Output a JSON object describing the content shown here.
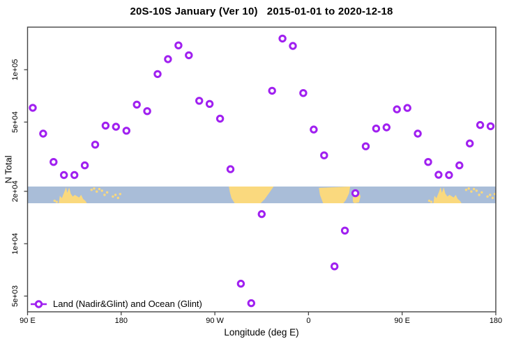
{
  "title": "20S-10S January (Ver 10)   2015-01-01 to 2020-12-18",
  "axes": {
    "x_label": "Longitude (deg E)",
    "y_label": "N Total"
  },
  "legend": {
    "label": "Land (Nadir&Glint) and Ocean (Glint)"
  },
  "colors": {
    "marker": "#A020F0",
    "ocean": "#A9BDD8",
    "land": "#FAD97E",
    "axis": "#444444"
  },
  "chart_data": {
    "type": "scatter",
    "title": "20S-10S January (Ver 10)   2015-01-01 to 2020-12-18",
    "xlabel": "Longitude (deg E)",
    "ylabel": "N Total",
    "x_axis": {
      "note": "wrapped longitude axis spanning 450 deg: 90E -> 180 -> 90W -> 0 -> 90E -> 180",
      "domain_deg": [
        90,
        540
      ],
      "ticks": [
        {
          "deg": 90,
          "label": "90 E"
        },
        {
          "deg": 180,
          "label": "180"
        },
        {
          "deg": 270,
          "label": "90 W"
        },
        {
          "deg": 360,
          "label": "0"
        },
        {
          "deg": 450,
          "label": "90 E"
        },
        {
          "deg": 540,
          "label": "180"
        }
      ]
    },
    "y_axis": {
      "scale": "log",
      "ticks": [
        {
          "value": 100000,
          "label": "1e+05"
        },
        {
          "value": 50000,
          "label": "5e+04"
        },
        {
          "value": 20000,
          "label": "2e+04"
        },
        {
          "value": 10000,
          "label": "1e+04"
        },
        {
          "value": 5000,
          "label": "5e+03"
        }
      ]
    },
    "series": [
      {
        "name": "Land (Nadir&Glint) and Ocean (Glint)",
        "marker": "open-circle",
        "color": "#A020F0",
        "points": [
          [
            95,
            60400
          ],
          [
            105,
            42900
          ],
          [
            115,
            29500
          ],
          [
            125,
            24800
          ],
          [
            135,
            24800
          ],
          [
            145,
            28200
          ],
          [
            155,
            37100
          ],
          [
            165,
            47700
          ],
          [
            175,
            47000
          ],
          [
            185,
            44600
          ],
          [
            195,
            63000
          ],
          [
            205,
            57800
          ],
          [
            215,
            94400
          ],
          [
            225,
            115000
          ],
          [
            235,
            138000
          ],
          [
            245,
            121000
          ],
          [
            255,
            66300
          ],
          [
            265,
            63600
          ],
          [
            275,
            52300
          ],
          [
            285,
            26800
          ],
          [
            295,
            5890
          ],
          [
            305,
            4550
          ],
          [
            315,
            14800
          ],
          [
            325,
            75700
          ],
          [
            335,
            151000
          ],
          [
            345,
            137000
          ],
          [
            355,
            73400
          ],
          [
            365,
            45300
          ],
          [
            375,
            32200
          ],
          [
            385,
            7410
          ],
          [
            395,
            11900
          ],
          [
            405,
            19500
          ],
          [
            415,
            36300
          ],
          [
            425,
            45900
          ],
          [
            435,
            46600
          ],
          [
            445,
            59200
          ],
          [
            455,
            60300
          ],
          [
            465,
            42900
          ],
          [
            475,
            29500
          ],
          [
            485,
            24900
          ],
          [
            495,
            24800
          ],
          [
            505,
            28200
          ],
          [
            515,
            37700
          ],
          [
            525,
            48100
          ],
          [
            535,
            47300
          ]
        ]
      }
    ],
    "map_band": {
      "description": "20S-10S latitude world-map strip drawn across the plot",
      "n_value_top": 21300,
      "n_value_bottom": 17100,
      "ocean_color": "#A9BDD8",
      "land_color": "#FAD97E",
      "land_patches": [
        {
          "name": "australia-timor-newguinea",
          "wrap": true,
          "pts": [
            [
              120,
              1
            ],
            [
              121,
              0.55
            ],
            [
              123,
              0.7
            ],
            [
              125.5,
              0.3
            ],
            [
              127,
              0.04
            ],
            [
              128.2,
              0.38
            ],
            [
              130,
              0.06
            ],
            [
              131.5,
              0.42
            ],
            [
              133.5,
              0.6
            ],
            [
              135.5,
              0.5
            ],
            [
              137.5,
              0.58
            ],
            [
              139.5,
              0.66
            ],
            [
              141.5,
              0.5
            ],
            [
              143.5,
              0.75
            ],
            [
              145.5,
              0.85
            ],
            [
              147,
              1
            ]
          ]
        },
        {
          "name": "south-america",
          "wrap": false,
          "pts": [
            [
              283.5,
              0
            ],
            [
              326.5,
              0
            ],
            [
              322,
              0.4
            ],
            [
              318,
              0.75
            ],
            [
              314,
              1
            ],
            [
              289,
              1
            ],
            [
              286,
              0.7
            ],
            [
              284.5,
              0.35
            ]
          ]
        },
        {
          "name": "africa",
          "wrap": false,
          "pts": [
            [
              370,
              0.08
            ],
            [
              400,
              0
            ],
            [
              399,
              0.4
            ],
            [
              396,
              0.8
            ],
            [
              393.5,
              1
            ],
            [
              374,
              1
            ],
            [
              371,
              0.5
            ]
          ]
        },
        {
          "name": "madagascar",
          "wrap": false,
          "pts": [
            [
              402.5,
              0.75
            ],
            [
              404,
              0.3
            ],
            [
              406,
              0.15
            ],
            [
              408.5,
              0.3
            ],
            [
              410,
              0.6
            ],
            [
              408.5,
              0.95
            ],
            [
              404.5,
              1
            ],
            [
              402.8,
              0.95
            ]
          ]
        }
      ],
      "land_dots": [
        {
          "deg": 151.5,
          "f": 0.2,
          "wrap": true
        },
        {
          "deg": 154,
          "f": 0.12,
          "wrap": true
        },
        {
          "deg": 156.5,
          "f": 0.3,
          "wrap": true
        },
        {
          "deg": 159,
          "f": 0.15,
          "wrap": true
        },
        {
          "deg": 161.5,
          "f": 0.25,
          "wrap": true
        },
        {
          "deg": 164,
          "f": 0.5,
          "wrap": true
        },
        {
          "deg": 166.5,
          "f": 0.35,
          "wrap": true
        },
        {
          "deg": 172,
          "f": 0.6,
          "wrap": true
        },
        {
          "deg": 174.5,
          "f": 0.5,
          "wrap": true
        },
        {
          "deg": 177,
          "f": 0.68,
          "wrap": true
        },
        {
          "deg": 179,
          "f": 0.45,
          "wrap": true
        },
        {
          "deg": 116,
          "f": 0.85,
          "wrap": true
        },
        {
          "deg": 118,
          "f": 0.92,
          "wrap": true
        }
      ]
    }
  }
}
